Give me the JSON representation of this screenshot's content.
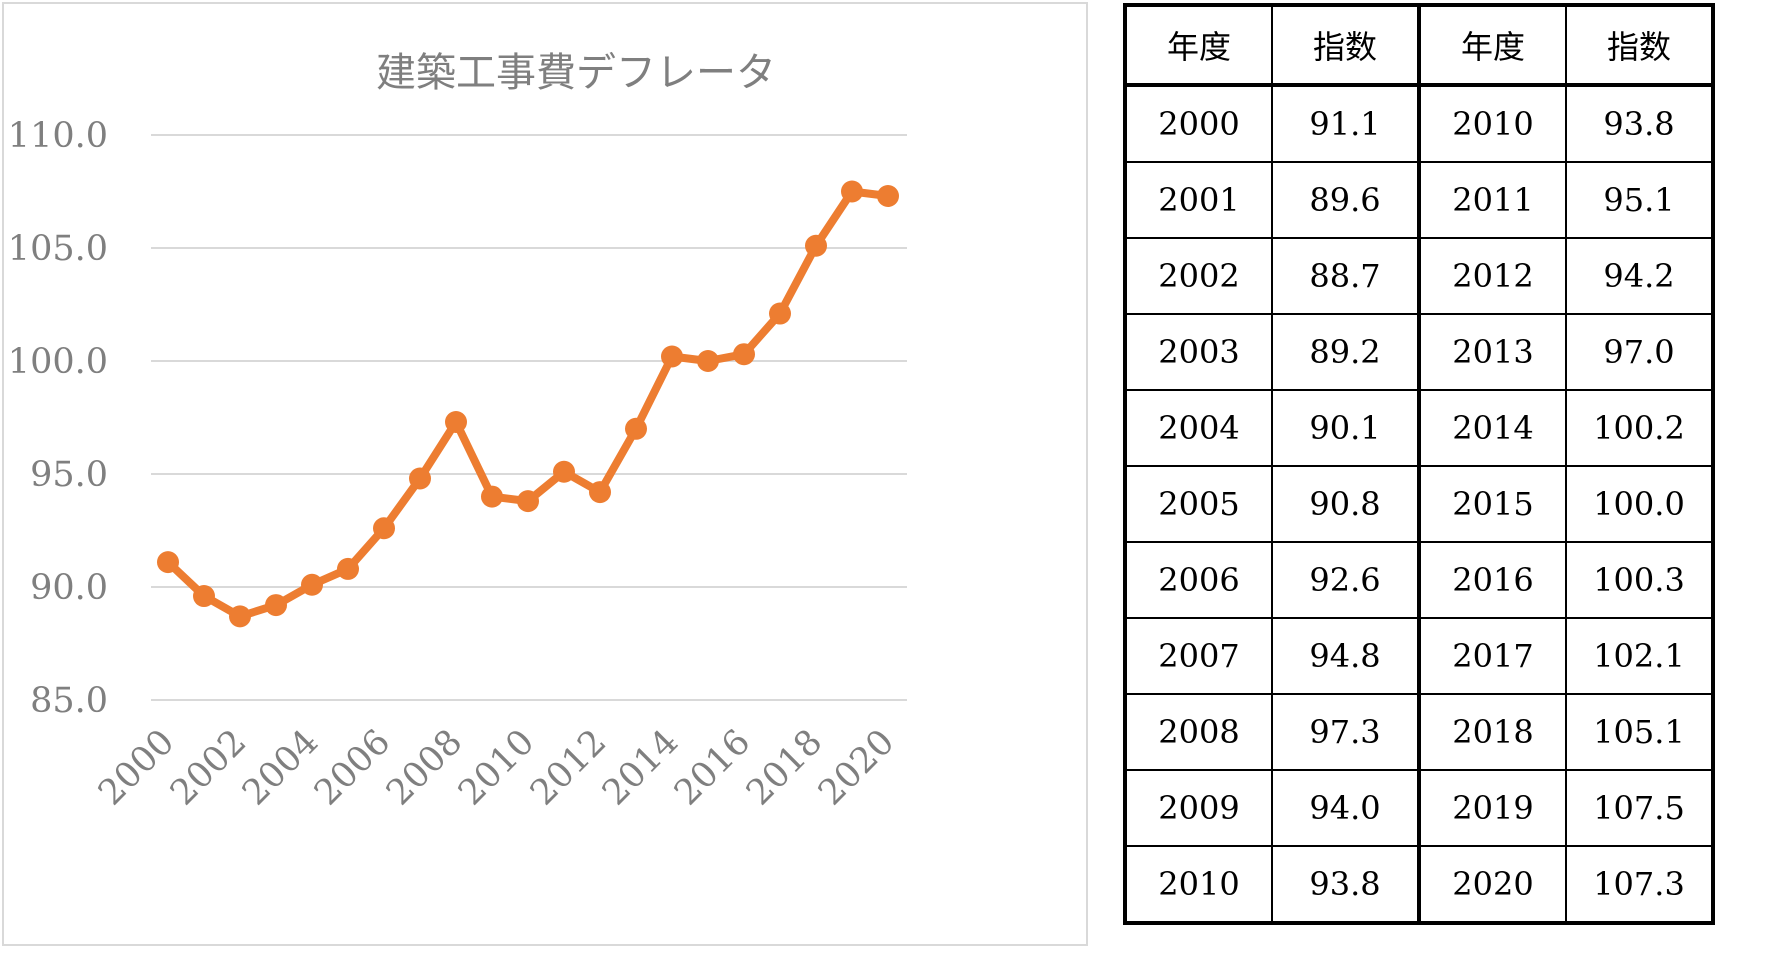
{
  "chart_data": {
    "type": "line",
    "title": "建築工事費デフレータ",
    "x": [
      "2000",
      "2001",
      "2002",
      "2003",
      "2004",
      "2005",
      "2006",
      "2007",
      "2008",
      "2009",
      "2010",
      "2011",
      "2012",
      "2013",
      "2014",
      "2015",
      "2016",
      "2017",
      "2018",
      "2019",
      "2020"
    ],
    "x_tick_labels": [
      "2000",
      "2002",
      "2004",
      "2006",
      "2008",
      "2010",
      "2012",
      "2014",
      "2016",
      "2018",
      "2020"
    ],
    "series": [
      {
        "values": [
          91.1,
          89.6,
          88.7,
          89.2,
          90.1,
          90.8,
          92.6,
          94.8,
          97.3,
          94.0,
          93.8,
          95.1,
          94.2,
          97.0,
          100.2,
          100.0,
          100.3,
          102.1,
          105.1,
          107.5,
          107.3
        ],
        "color": "#ed7d31"
      }
    ],
    "ylim": [
      85.0,
      110.0
    ],
    "y_ticks": [
      "85.0",
      "90.0",
      "95.0",
      "100.0",
      "105.0",
      "110.0"
    ],
    "grid": true,
    "legend": "none"
  },
  "table": {
    "headers": [
      "年度",
      "指数",
      "年度",
      "指数"
    ],
    "rows": [
      [
        "2000",
        "91.1",
        "2010",
        "93.8"
      ],
      [
        "2001",
        "89.6",
        "2011",
        "95.1"
      ],
      [
        "2002",
        "88.7",
        "2012",
        "94.2"
      ],
      [
        "2003",
        "89.2",
        "2013",
        "97.0"
      ],
      [
        "2004",
        "90.1",
        "2014",
        "100.2"
      ],
      [
        "2005",
        "90.8",
        "2015",
        "100.0"
      ],
      [
        "2006",
        "92.6",
        "2016",
        "100.3"
      ],
      [
        "2007",
        "94.8",
        "2017",
        "102.1"
      ],
      [
        "2008",
        "97.3",
        "2018",
        "105.1"
      ],
      [
        "2009",
        "94.0",
        "2019",
        "107.5"
      ],
      [
        "2010",
        "93.8",
        "2020",
        "107.3"
      ]
    ]
  }
}
